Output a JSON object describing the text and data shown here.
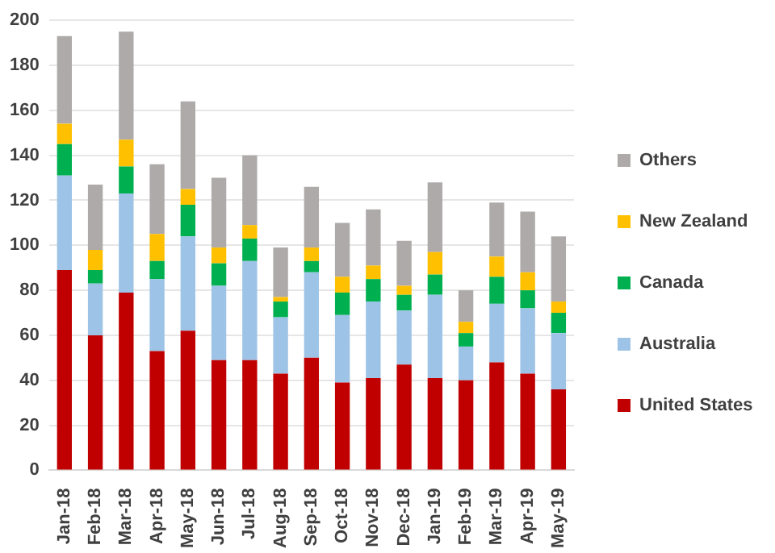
{
  "chart_data": {
    "type": "bar",
    "stacked": true,
    "categories": [
      "Jan-18",
      "Feb-18",
      "Mar-18",
      "Apr-18",
      "May-18",
      "Jun-18",
      "Jul-18",
      "Aug-18",
      "Sep-18",
      "Oct-18",
      "Nov-18",
      "Dec-18",
      "Jan-19",
      "Feb-19",
      "Mar-19",
      "Apr-19",
      "May-19"
    ],
    "series": [
      {
        "name": "United States",
        "color": "#c00000",
        "values": [
          89,
          60,
          79,
          53,
          62,
          49,
          49,
          43,
          50,
          39,
          41,
          47,
          41,
          40,
          48,
          43,
          36
        ]
      },
      {
        "name": "Australia",
        "color": "#9dc3e6",
        "values": [
          42,
          23,
          44,
          32,
          42,
          33,
          44,
          25,
          38,
          30,
          34,
          24,
          37,
          15,
          26,
          29,
          25
        ]
      },
      {
        "name": "Canada",
        "color": "#00b050",
        "values": [
          14,
          6,
          12,
          8,
          14,
          10,
          10,
          7,
          5,
          10,
          10,
          7,
          9,
          6,
          12,
          8,
          9
        ]
      },
      {
        "name": "New Zealand",
        "color": "#ffc000",
        "values": [
          9,
          9,
          12,
          12,
          7,
          7,
          6,
          2,
          6,
          7,
          6,
          4,
          10,
          5,
          9,
          8,
          5
        ]
      },
      {
        "name": "Others",
        "color": "#aeaaaa",
        "values": [
          39,
          29,
          48,
          31,
          39,
          31,
          31,
          22,
          27,
          24,
          25,
          20,
          31,
          14,
          24,
          27,
          29
        ]
      }
    ],
    "ylim": [
      0,
      200
    ],
    "yticks": [
      0,
      20,
      40,
      60,
      80,
      100,
      120,
      140,
      160,
      180,
      200
    ],
    "grid": "y",
    "legend": "right"
  }
}
